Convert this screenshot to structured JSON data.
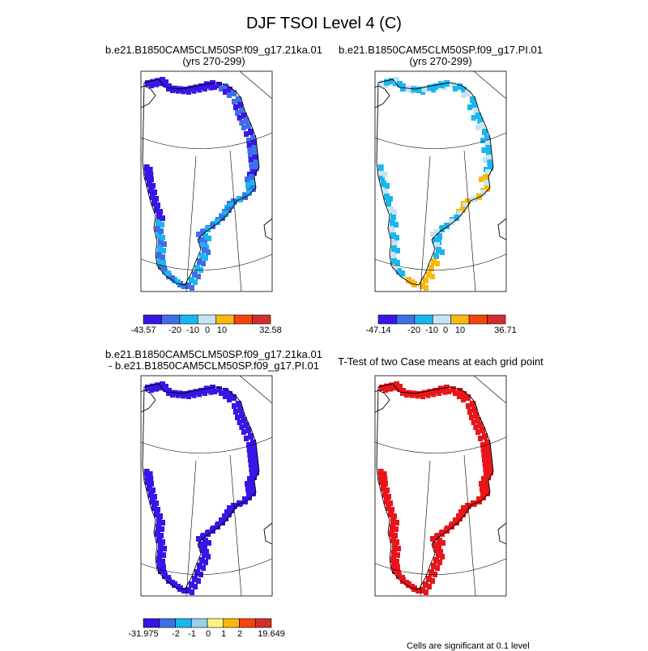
{
  "main_title": "DJF TSOI Level 4 (C)",
  "panels": [
    {
      "id": "p1",
      "title_lines": [
        "b.e21.B1850CAM5CLM50SP.f09_g17.21ka.01",
        "(yrs 270-299)"
      ]
    },
    {
      "id": "p2",
      "title_lines": [
        "b.e21.B1850CAM5CLM50SP.f09_g17.PI.01",
        "(yrs 270-299)"
      ]
    },
    {
      "id": "p3",
      "title_lines": [
        "b.e21.B1850CAM5CLM50SP.f09_g17.21ka.01",
        "- b.e21.B1850CAM5CLM50SP.f09_g17.PI.01"
      ]
    },
    {
      "id": "p4",
      "title_lines": [
        "T-Test of two Case means at each grid point"
      ]
    }
  ],
  "colorbars": [
    {
      "id": "cb1",
      "colors": [
        "#3b14e8",
        "#3f6ee8",
        "#1ab6ee",
        "#c6e4f3",
        "#f9b80f",
        "#f5440c",
        "#d22d2d"
      ],
      "labels": [
        "-43.57",
        "-20",
        "-10",
        "0",
        "10",
        "32.58"
      ]
    },
    {
      "id": "cb2",
      "colors": [
        "#3b14e8",
        "#3f6ee8",
        "#1ab6ee",
        "#c6e4f3",
        "#f9b80f",
        "#f5440c",
        "#d22d2d"
      ],
      "labels": [
        "-47.14",
        "-20",
        "-10",
        "0",
        "10",
        "36.71"
      ]
    },
    {
      "id": "cb3",
      "colors": [
        "#3b14e8",
        "#3f6ee8",
        "#1ab6ee",
        "#9ccfee",
        "#fbf27c",
        "#f9b80f",
        "#f5440c",
        "#d22d2d"
      ],
      "labels": [
        "-31.975",
        "-2",
        "-1",
        "0",
        "1",
        "2",
        "19.649"
      ]
    }
  ],
  "significance_note": "Cells are significant at 0.1 level",
  "chart_data": [
    {
      "type": "heatmap",
      "title": "b.e21.B1850CAM5CLM50SP.f09_g17.21ka.01 (yrs 270-299)",
      "range": [
        -43.57,
        32.58
      ],
      "levels": [
        -30,
        -20,
        -10,
        0,
        10,
        20
      ],
      "dominant_categories": [
        "-43.57 to -20",
        "-20 to -10",
        "-10 to 0"
      ]
    },
    {
      "type": "heatmap",
      "title": "b.e21.B1850CAM5CLM50SP.f09_g17.PI.01 (yrs 270-299)",
      "range": [
        -47.14,
        36.71
      ],
      "levels": [
        -30,
        -20,
        -10,
        0,
        10,
        20
      ],
      "dominant_categories": [
        "-10 to 0",
        "0 to 10",
        "-20 to -10"
      ]
    },
    {
      "type": "heatmap",
      "title": "b.e21.B1850CAM5CLM50SP.f09_g17.21ka.01 - b.e21.B1850CAM5CLM50SP.f09_g17.PI.01",
      "range": [
        -31.975,
        19.649
      ],
      "levels": [
        -3,
        -2,
        -1,
        0,
        1,
        2,
        3
      ],
      "dominant_categories": [
        "-31.975 to -3"
      ]
    },
    {
      "type": "heatmap",
      "title": "T-Test of two Case means at each grid point",
      "significance_level": 0.1,
      "dominant_categories": [
        "significant"
      ]
    }
  ]
}
